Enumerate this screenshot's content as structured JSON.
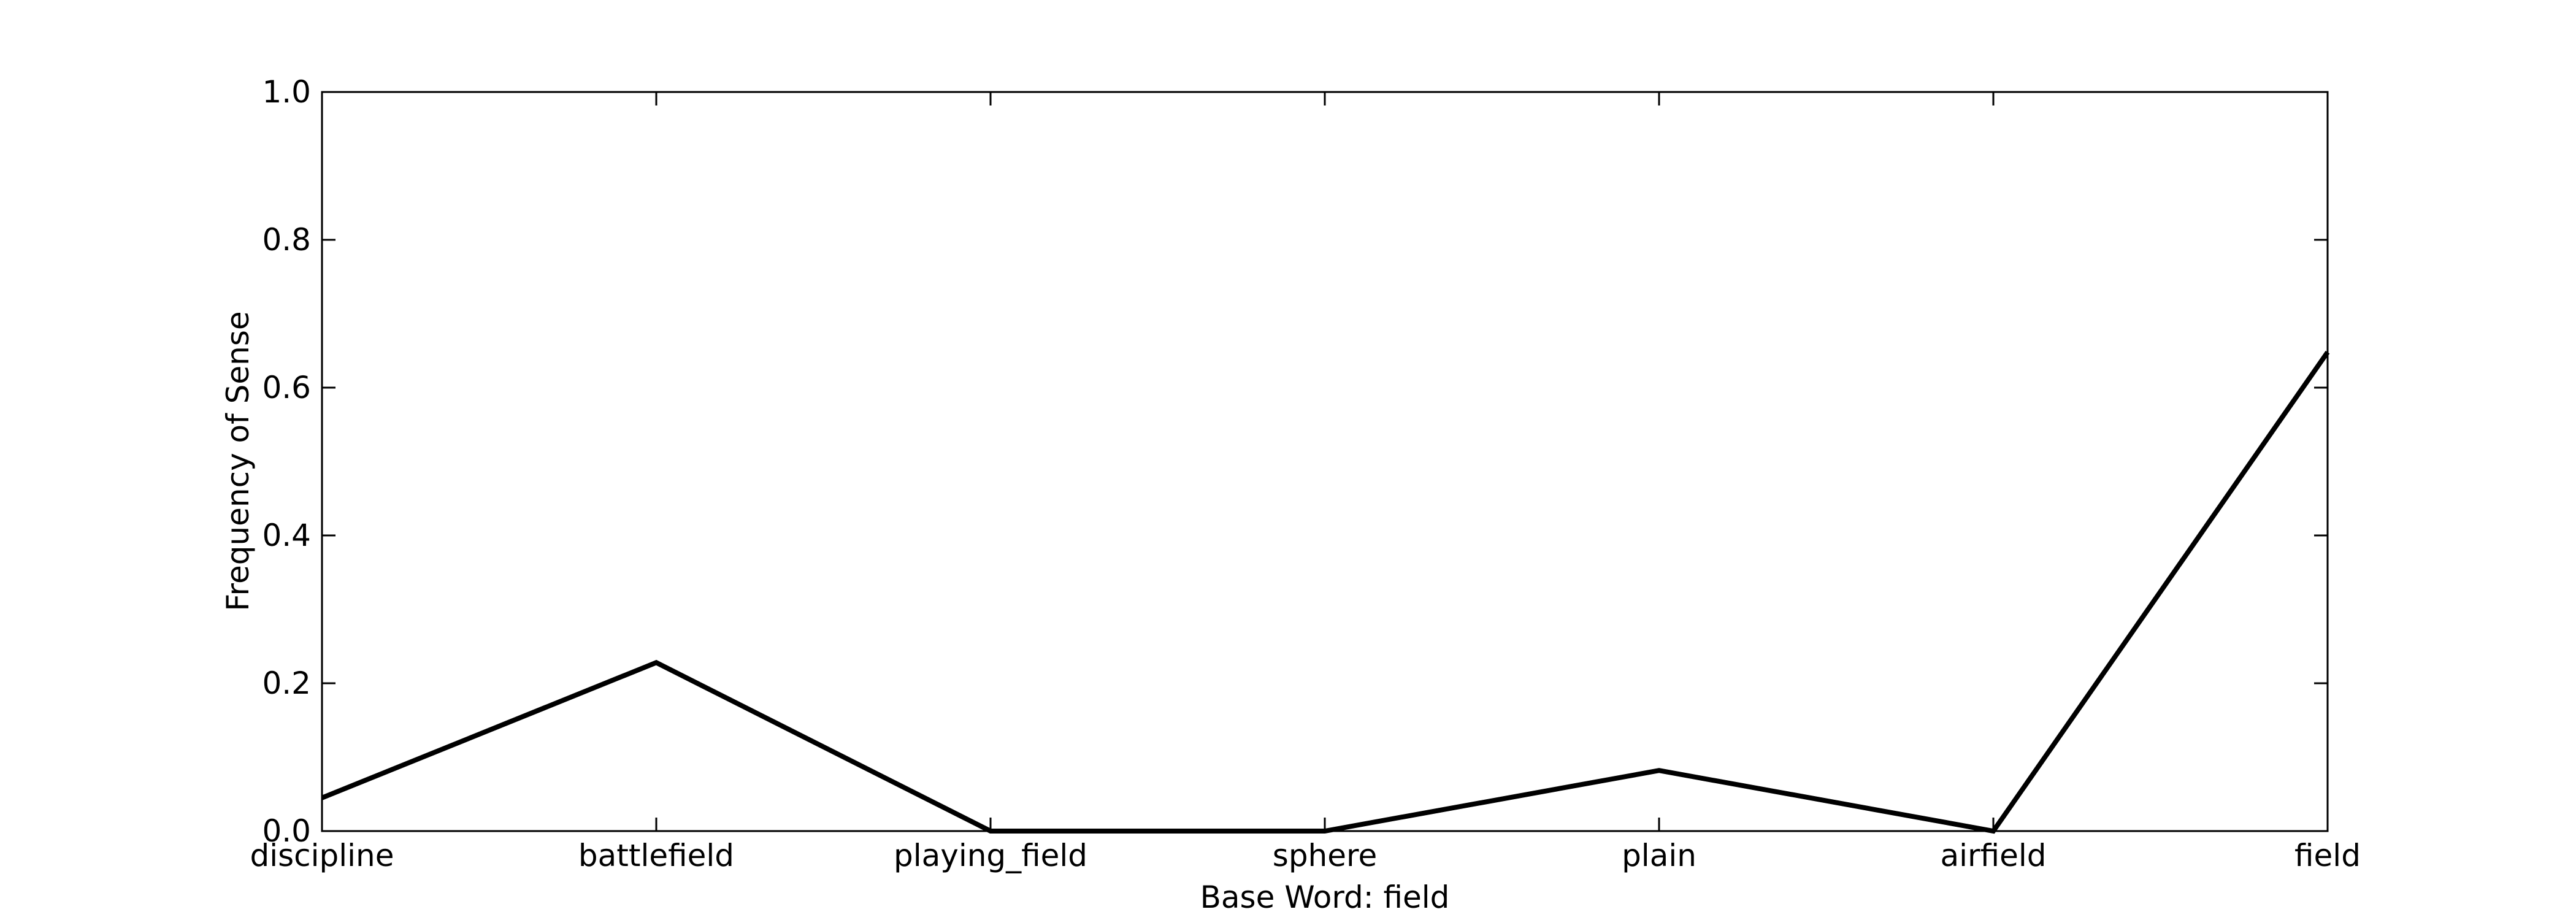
{
  "chart_data": {
    "type": "line",
    "title": "",
    "xlabel": "Base Word: field",
    "ylabel": "Frequency of Sense",
    "categories": [
      "discipline",
      "battlefield",
      "playing_field",
      "sphere",
      "plain",
      "airfield",
      "field"
    ],
    "series": [
      {
        "values": [
          0.045,
          0.228,
          0.0,
          0.0,
          0.082,
          0.0,
          0.648
        ],
        "color": "#000000"
      }
    ],
    "ylim": [
      0.0,
      1.0
    ],
    "yticks": [
      "0.0",
      "0.2",
      "0.4",
      "0.6",
      "0.8",
      "1.0"
    ],
    "grid": false,
    "legend": "none"
  }
}
